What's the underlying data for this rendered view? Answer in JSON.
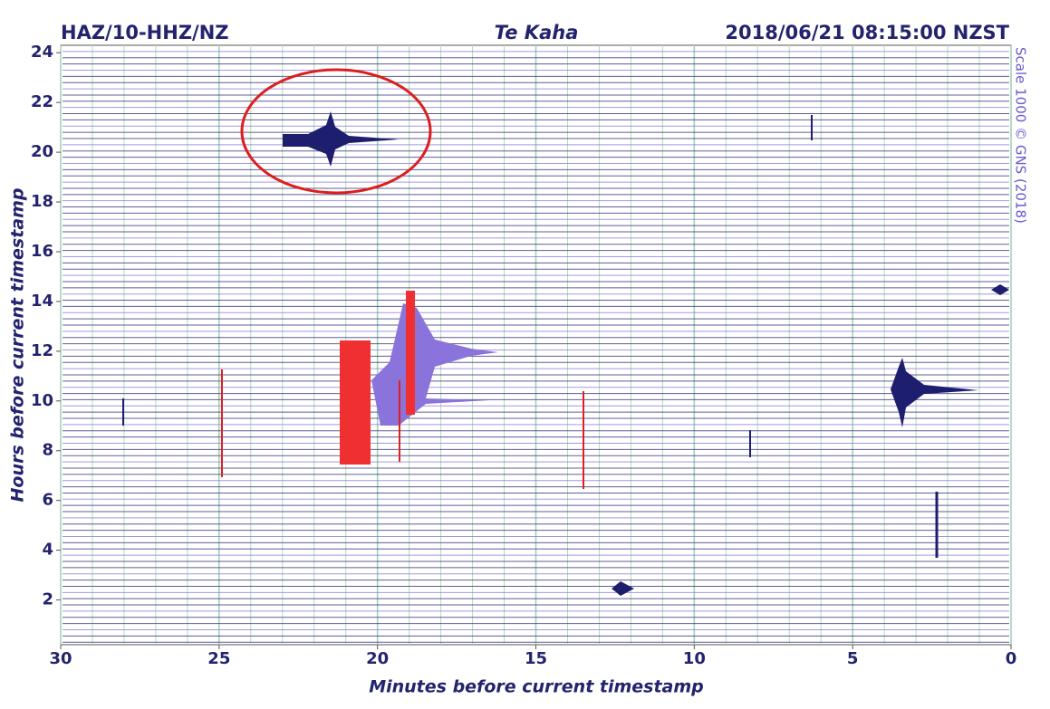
{
  "chart_data": {
    "type": "helicorder",
    "title_left": "HAZ/10-HHZ/NZ",
    "title_center": "Te Kaha",
    "title_right": "2018/06/21 08:15:00 NZST",
    "side_label": "Scale 1000 © GNS (2018)",
    "x_label": "Minutes before current timestamp",
    "y_label": "Hours before current timestamp",
    "xlim": [
      30,
      0
    ],
    "ylim": [
      0.2,
      24.3
    ],
    "xticks": [
      30,
      25,
      20,
      15,
      10,
      5,
      0
    ],
    "yticks": [
      2,
      4,
      6,
      8,
      10,
      12,
      14,
      16,
      18,
      20,
      22,
      24
    ],
    "grid": true
  }
}
